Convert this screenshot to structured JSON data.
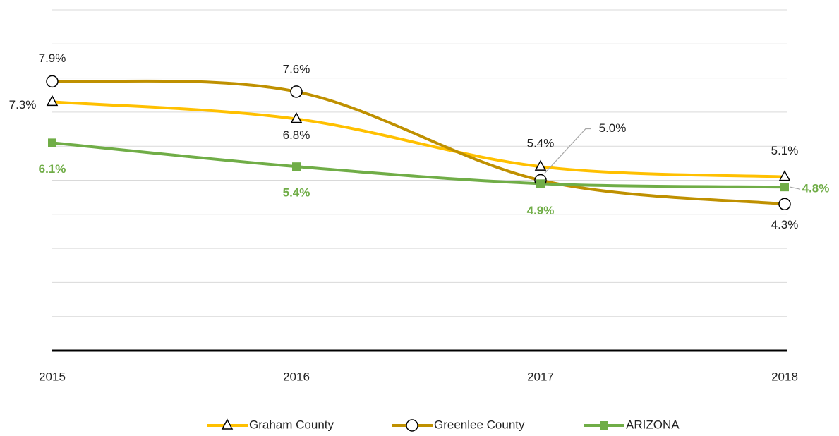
{
  "chart_data": {
    "type": "line",
    "categories": [
      "2015",
      "2016",
      "2017",
      "2018"
    ],
    "series": [
      {
        "name": "Graham County",
        "color": "#FFC000",
        "marker": "triangle",
        "values": [
          7.3,
          6.8,
          5.4,
          5.1
        ],
        "value_labels": [
          "7.3%",
          "6.8%",
          "5.4%",
          "5.1%"
        ]
      },
      {
        "name": "Greenlee County",
        "color": "#BF9000",
        "marker": "circle",
        "values": [
          7.9,
          7.6,
          5.0,
          4.3
        ],
        "value_labels": [
          "7.9%",
          "7.6%",
          "5.0%",
          "4.3%"
        ]
      },
      {
        "name": "ARIZONA",
        "color": "#70AD47",
        "marker": "square",
        "values": [
          6.1,
          5.4,
          4.9,
          4.8
        ],
        "value_labels": [
          "6.1%",
          "5.4%",
          "4.9%",
          "4.8%"
        ]
      }
    ],
    "ylim": [
      0,
      10
    ],
    "yticks": [
      0,
      1,
      2,
      3,
      4,
      5,
      6,
      7,
      8,
      9,
      10
    ],
    "grid": true,
    "legend": "bottom"
  }
}
